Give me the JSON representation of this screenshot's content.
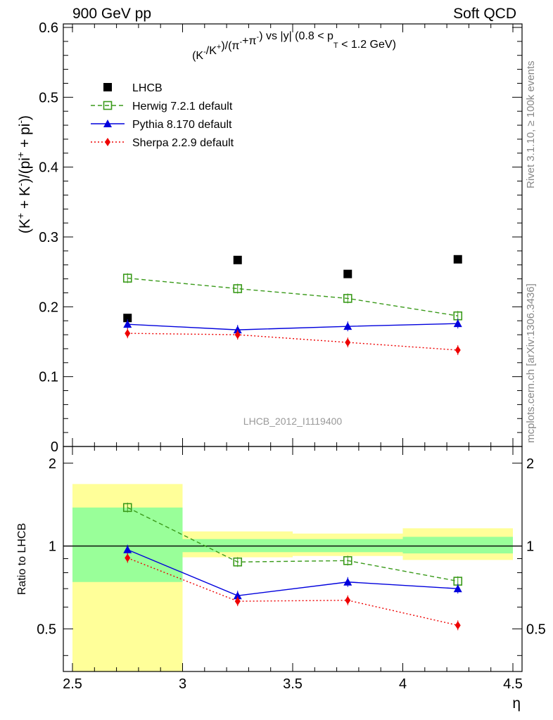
{
  "header": {
    "left": "900 GeV pp",
    "right": "Soft QCD"
  },
  "side_text": {
    "rivet": "Rivet 3.1.10, ≥ 100k events",
    "mcplots": "mcplots.cern.ch [arXiv:1306.3436]"
  },
  "watermark": "LHCB_2012_I1119400",
  "chart_data": [
    {
      "type": "scatter",
      "title": "(K⁻/K⁺)/(π⁻+π⁻) vs |y| (0.8 < pT < 1.2 GeV)",
      "title_parts": {
        "pre": "(K",
        "sup1": "-",
        "mid1": "/K",
        "sup2": "+",
        "mid2": ")/(π",
        "sup3": "-",
        "mid3": "+π",
        "sup4": "-",
        "mid4": ") vs |y| (0.8 < p",
        "sub1": "T",
        "post": " < 1.2 GeV)"
      },
      "ylabel": "(K⁺ + K⁻)/(pi⁺ + pi⁻)",
      "ylabel_parts": {
        "a": "(K",
        "s1": "+",
        "b": " + K",
        "s2": "-",
        "c": ")/(pi",
        "s3": "+",
        "d": " + pi",
        "s4": "-",
        "e": ")"
      },
      "xlim": [
        2.5,
        4.5
      ],
      "ylim": [
        0,
        0.6
      ],
      "yticks": [
        "0",
        "0.1",
        "0.2",
        "0.3",
        "0.4",
        "0.5",
        "0.6"
      ],
      "x": [
        2.75,
        3.25,
        3.75,
        4.25
      ],
      "legend_position": "top-left",
      "series": [
        {
          "name": "LHCB",
          "values": [
            0.184,
            0.267,
            0.247,
            0.268
          ],
          "color": "#000000",
          "marker": "filled-square",
          "line": "none"
        },
        {
          "name": "Herwig 7.2.1 default",
          "values": [
            0.241,
            0.226,
            0.212,
            0.187
          ],
          "color": "#3a9a1a",
          "marker": "open-square",
          "line": "dashed"
        },
        {
          "name": "Pythia 8.170 default",
          "values": [
            0.175,
            0.167,
            0.172,
            0.176
          ],
          "color": "#0000dd",
          "marker": "triangle",
          "line": "solid"
        },
        {
          "name": "Sherpa 2.2.9 default",
          "values": [
            0.162,
            0.16,
            0.149,
            0.138
          ],
          "color": "#ee0000",
          "marker": "diamond",
          "line": "dotted"
        }
      ]
    },
    {
      "type": "line",
      "ylabel": "Ratio to LHCB",
      "xlabel": "η",
      "xlim": [
        2.5,
        4.5
      ],
      "ylim": [
        0.35,
        2.3
      ],
      "ytick_values": [
        0.5,
        1,
        2
      ],
      "yticks": [
        "0.5",
        "1",
        "2"
      ],
      "xticks": [
        "2.5",
        "3",
        "3.5",
        "4",
        "4.5"
      ],
      "xtick_values": [
        2.5,
        3,
        3.5,
        4,
        4.5
      ],
      "bins": [
        [
          2.5,
          3.0
        ],
        [
          3.0,
          3.5
        ],
        [
          3.5,
          4.0
        ],
        [
          4.0,
          4.5
        ]
      ],
      "band_inner": [
        [
          0.74,
          1.38
        ],
        [
          0.95,
          1.06
        ],
        [
          0.95,
          1.06
        ],
        [
          0.94,
          1.08
        ]
      ],
      "band_outer": [
        [
          0.35,
          1.68
        ],
        [
          0.91,
          1.13
        ],
        [
          0.92,
          1.11
        ],
        [
          0.89,
          1.16
        ]
      ],
      "x": [
        2.75,
        3.25,
        3.75,
        4.25
      ],
      "series": [
        {
          "name": "Herwig 7.2.1 default",
          "values": [
            1.38,
            0.875,
            0.885,
            0.745
          ],
          "color": "#3a9a1a"
        },
        {
          "name": "Pythia 8.170 default",
          "values": [
            0.97,
            0.66,
            0.74,
            0.7
          ],
          "color": "#0000dd"
        },
        {
          "name": "Sherpa 2.2.9 default",
          "values": [
            0.905,
            0.63,
            0.635,
            0.515
          ],
          "color": "#ee0000"
        }
      ]
    }
  ]
}
